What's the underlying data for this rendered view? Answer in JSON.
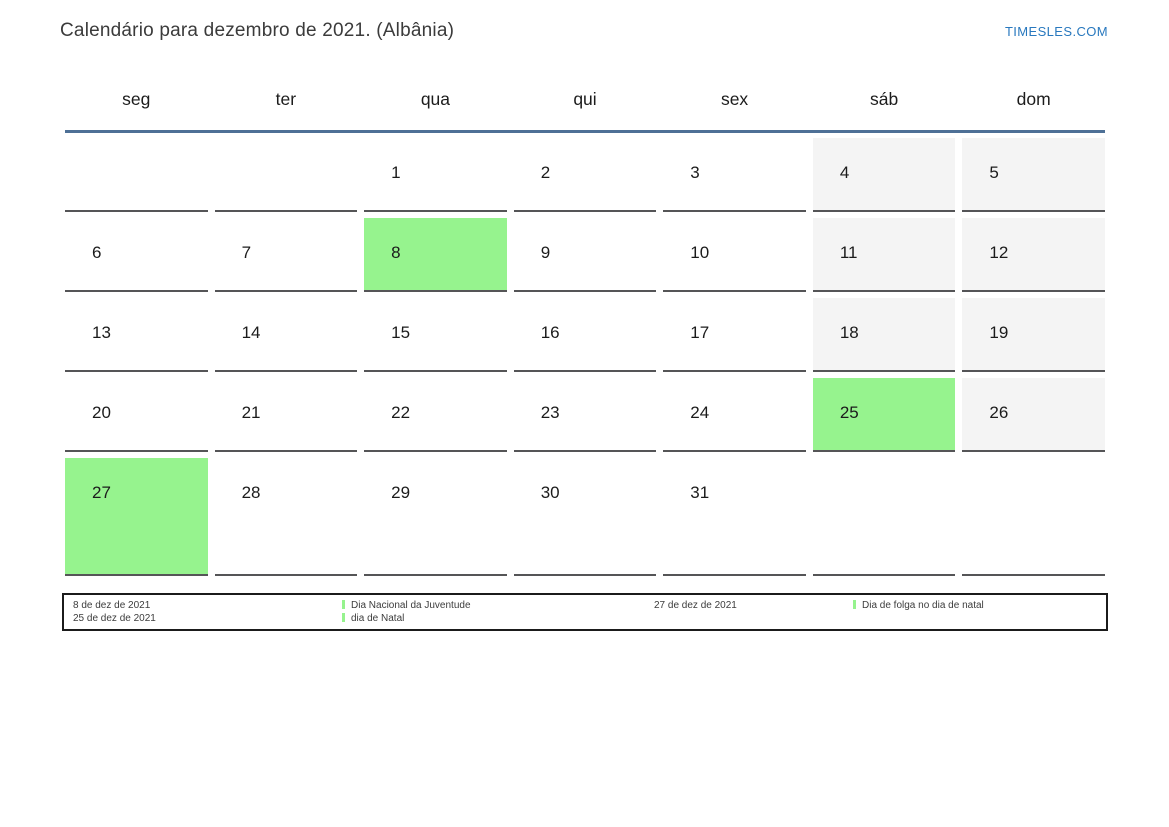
{
  "header": {
    "title": "Calendário para dezembro de 2021. (Albânia)",
    "site_link": "TIMESLES.COM"
  },
  "weekdays": [
    "seg",
    "ter",
    "qua",
    "qui",
    "sex",
    "sáb",
    "dom"
  ],
  "calendar": {
    "cells": [
      {
        "day": "",
        "kind": "empty"
      },
      {
        "day": "",
        "kind": "empty"
      },
      {
        "day": "1",
        "kind": "normal"
      },
      {
        "day": "2",
        "kind": "normal"
      },
      {
        "day": "3",
        "kind": "normal"
      },
      {
        "day": "4",
        "kind": "weekend"
      },
      {
        "day": "5",
        "kind": "weekend"
      },
      {
        "day": "6",
        "kind": "normal"
      },
      {
        "day": "7",
        "kind": "normal"
      },
      {
        "day": "8",
        "kind": "holiday"
      },
      {
        "day": "9",
        "kind": "normal"
      },
      {
        "day": "10",
        "kind": "normal"
      },
      {
        "day": "11",
        "kind": "weekend"
      },
      {
        "day": "12",
        "kind": "weekend"
      },
      {
        "day": "13",
        "kind": "normal"
      },
      {
        "day": "14",
        "kind": "normal"
      },
      {
        "day": "15",
        "kind": "normal"
      },
      {
        "day": "16",
        "kind": "normal"
      },
      {
        "day": "17",
        "kind": "normal"
      },
      {
        "day": "18",
        "kind": "weekend"
      },
      {
        "day": "19",
        "kind": "weekend"
      },
      {
        "day": "20",
        "kind": "normal"
      },
      {
        "day": "21",
        "kind": "normal"
      },
      {
        "day": "22",
        "kind": "normal"
      },
      {
        "day": "23",
        "kind": "normal"
      },
      {
        "day": "24",
        "kind": "normal"
      },
      {
        "day": "25",
        "kind": "holiday"
      },
      {
        "day": "26",
        "kind": "weekend"
      },
      {
        "day": "27",
        "kind": "holiday"
      },
      {
        "day": "28",
        "kind": "normal"
      },
      {
        "day": "29",
        "kind": "normal"
      },
      {
        "day": "30",
        "kind": "normal"
      },
      {
        "day": "31",
        "kind": "normal"
      },
      {
        "day": "",
        "kind": "empty"
      },
      {
        "day": "",
        "kind": "empty"
      }
    ]
  },
  "legend": {
    "groups": [
      {
        "dates": [
          "8 de dez de 2021",
          "25 de dez de 2021"
        ],
        "entries": [
          "Dia Nacional da Juventude",
          "dia de Natal"
        ]
      },
      {
        "dates": [
          "27 de dez de 2021"
        ],
        "entries": [
          "Dia de folga no dia de natal"
        ]
      }
    ]
  },
  "colors": {
    "holiday_green": "#96f38e",
    "weekend_gray": "#f4f4f4",
    "header_line_blue": "#4e7096",
    "link_blue": "#2878be",
    "cell_border": "#555557"
  }
}
